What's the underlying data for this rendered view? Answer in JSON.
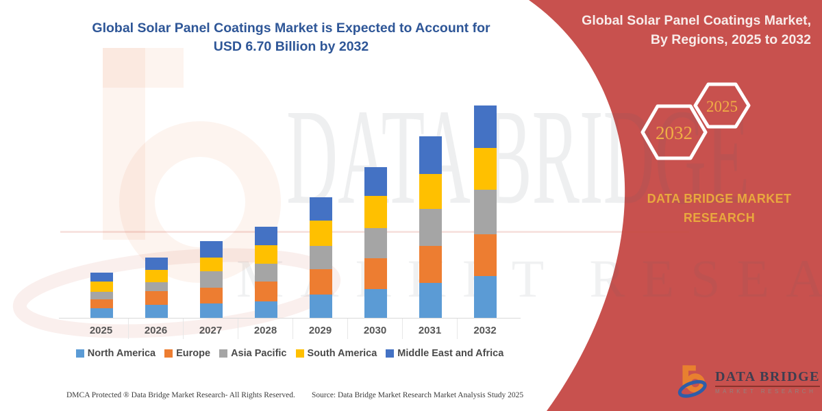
{
  "chart": {
    "title_line1": "Global Solar Panel Coatings Market is Expected to Account for",
    "title_line2": "USD 6.70 Billion by 2032"
  },
  "chart_data": {
    "type": "bar",
    "stacked": true,
    "title": "Global Solar Panel Coatings Market is Expected to Account for USD 6.70 Billion by 2032",
    "unit": "USD Billion",
    "categories": [
      "2025",
      "2026",
      "2027",
      "2028",
      "2029",
      "2030",
      "2031",
      "2032"
    ],
    "series": [
      {
        "name": "North America",
        "color": "#5B9BD5",
        "values": [
          0.3,
          0.41,
          0.45,
          0.52,
          0.73,
          0.9,
          1.1,
          1.32
        ]
      },
      {
        "name": "Europe",
        "color": "#ED7D31",
        "values": [
          0.28,
          0.43,
          0.5,
          0.62,
          0.8,
          0.97,
          1.18,
          1.32
        ]
      },
      {
        "name": "Asia Pacific",
        "color": "#A5A5A5",
        "values": [
          0.24,
          0.28,
          0.52,
          0.56,
          0.75,
          0.97,
          1.16,
          1.4
        ]
      },
      {
        "name": "South America",
        "color": "#FFC000",
        "values": [
          0.32,
          0.39,
          0.44,
          0.6,
          0.8,
          1.01,
          1.1,
          1.32
        ]
      },
      {
        "name": "Middle East and Africa",
        "color": "#4472C4",
        "values": [
          0.28,
          0.39,
          0.52,
          0.58,
          0.73,
          0.9,
          1.18,
          1.34
        ]
      }
    ],
    "totals": [
      1.42,
      1.9,
      2.43,
      2.88,
      3.81,
      4.75,
      5.72,
      6.7
    ],
    "ylim": [
      0,
      6.74
    ],
    "gridlines": false,
    "legend_position": "bottom",
    "xlabel": "",
    "ylabel": ""
  },
  "banner": {
    "color": "#C8514E",
    "title_line1": "Global Solar Panel Coatings Market,",
    "title_line2": "By Regions, 2025 to 2032",
    "hexagon_left": "2032",
    "hexagon_right": "2025",
    "brand_line1": "DATA BRIDGE MARKET",
    "brand_line2": "RESEARCH"
  },
  "logo": {
    "name": "DATA BRIDGE",
    "subtitle": "MARKET RESEARCH"
  },
  "watermark": {
    "line1": "DATA BRIDGE",
    "line2": "MARKET RESEARCH"
  },
  "footer": {
    "left": "DMCA Protected ® Data Bridge Market Research-  All Rights Reserved.",
    "source": "Source: Data Bridge Market Research  Market Analysis Study 2025"
  }
}
